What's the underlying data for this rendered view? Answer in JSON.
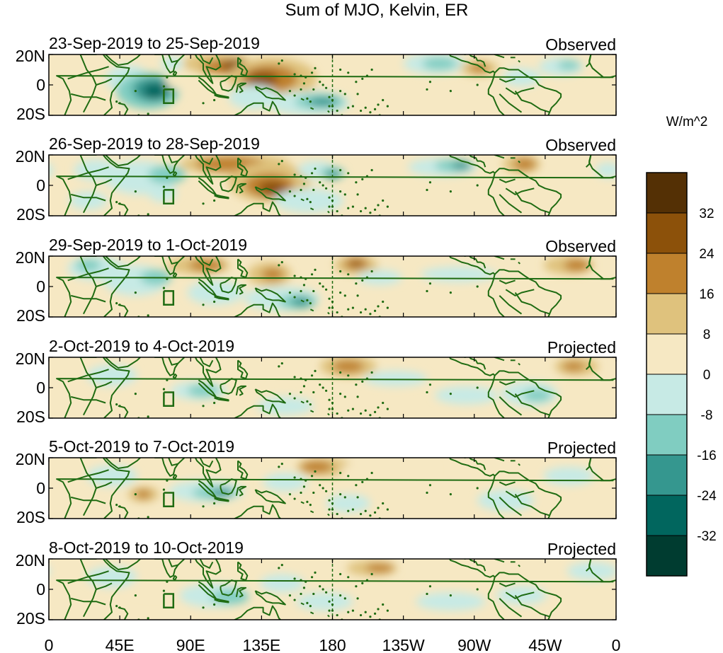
{
  "title": "Sum of MJO, Kelvin, ER",
  "panels": [
    {
      "date_range": "23-Sep-2019 to 25-Sep-2019",
      "status": "Observed"
    },
    {
      "date_range": "26-Sep-2019 to 28-Sep-2019",
      "status": "Observed"
    },
    {
      "date_range": "29-Sep-2019 to 1-Oct-2019",
      "status": "Observed"
    },
    {
      "date_range": "2-Oct-2019 to 4-Oct-2019",
      "status": "Projected"
    },
    {
      "date_range": "5-Oct-2019 to 7-Oct-2019",
      "status": "Projected"
    },
    {
      "date_range": "8-Oct-2019 to 10-Oct-2019",
      "status": "Projected"
    }
  ],
  "lat_labels": [
    "20N",
    "0",
    "20S"
  ],
  "lon_labels": [
    "0",
    "45E",
    "90E",
    "135E",
    "180",
    "135W",
    "90W",
    "45W",
    "0"
  ],
  "colorbar": {
    "units": "W/m^2",
    "labels": [
      "32",
      "24",
      "16",
      "8",
      "0",
      "-8",
      "-16",
      "-24",
      "-32"
    ],
    "colors": [
      "#543005",
      "#8c510a",
      "#bf812d",
      "#dfc27d",
      "#f6e8c3",
      "#c7eae5",
      "#80cdc1",
      "#35978f",
      "#01665e",
      "#003c30"
    ]
  },
  "colors": {
    "coastline": "#1f6b12",
    "frame": "#000000"
  }
}
